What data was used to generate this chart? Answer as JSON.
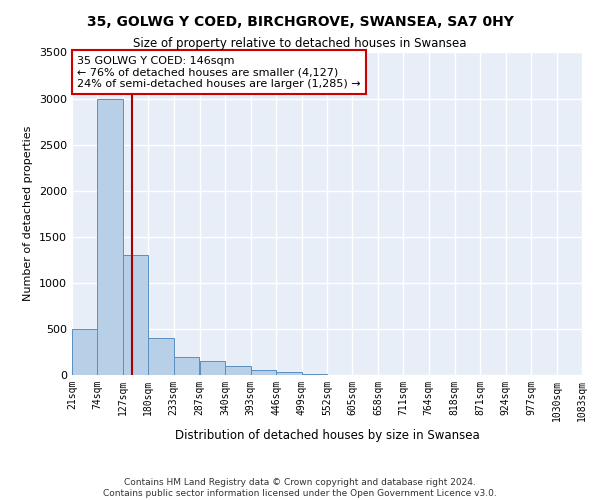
{
  "title": "35, GOLWG Y COED, BIRCHGROVE, SWANSEA, SA7 0HY",
  "subtitle": "Size of property relative to detached houses in Swansea",
  "xlabel": "Distribution of detached houses by size in Swansea",
  "ylabel": "Number of detached properties",
  "footer_line1": "Contains HM Land Registry data © Crown copyright and database right 2024.",
  "footer_line2": "Contains public sector information licensed under the Open Government Licence v3.0.",
  "bin_edges": [
    21,
    74,
    127,
    180,
    233,
    287,
    340,
    393,
    446,
    499,
    552,
    605,
    658,
    711,
    764,
    818,
    871,
    924,
    977,
    1030,
    1083
  ],
  "bar_heights": [
    500,
    3000,
    1300,
    400,
    200,
    150,
    100,
    50,
    30,
    10,
    5,
    3,
    2,
    1,
    1,
    1,
    1,
    0,
    0,
    0
  ],
  "bar_color": "#b8cfe8",
  "bar_edge_color": "#5a8fc0",
  "background_color": "#e8eef8",
  "grid_color": "#ffffff",
  "ylim": [
    0,
    3500
  ],
  "property_size": 146,
  "vline_color": "#aa0000",
  "annotation_text": "35 GOLWG Y COED: 146sqm\n← 76% of detached houses are smaller (4,127)\n24% of semi-detached houses are larger (1,285) →",
  "annotation_box_color": "#cc0000",
  "yticks": [
    0,
    500,
    1000,
    1500,
    2000,
    2500,
    3000,
    3500
  ],
  "tick_labels": [
    "21sqm",
    "74sqm",
    "127sqm",
    "180sqm",
    "233sqm",
    "287sqm",
    "340sqm",
    "393sqm",
    "446sqm",
    "499sqm",
    "552sqm",
    "605sqm",
    "658sqm",
    "711sqm",
    "764sqm",
    "818sqm",
    "871sqm",
    "924sqm",
    "977sqm",
    "1030sqm",
    "1083sqm"
  ]
}
